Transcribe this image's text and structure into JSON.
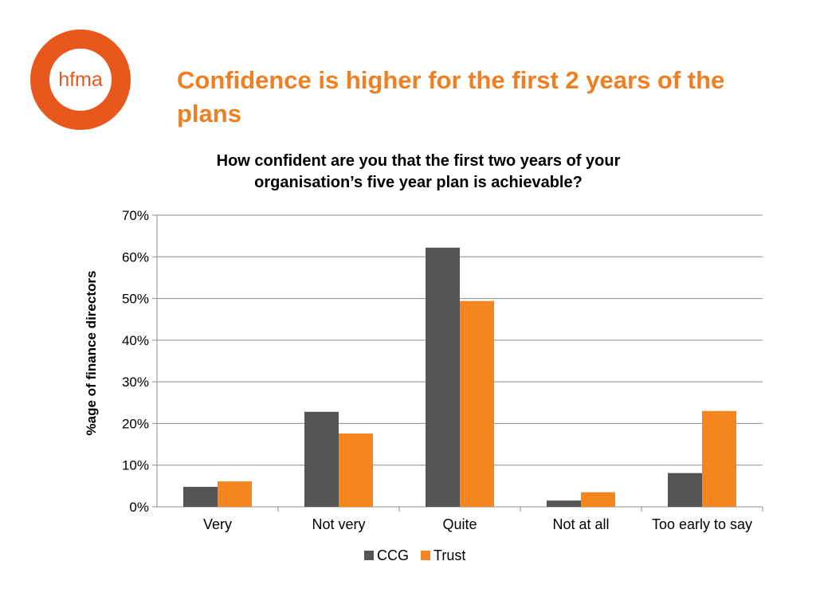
{
  "logo": {
    "text": "hfma"
  },
  "slide_title": "Confidence is higher for the first 2 years of the plans",
  "colors": {
    "ccg": "#555555",
    "trust": "#f5861f",
    "title": "#f07f22",
    "logo": "#e8581c"
  },
  "chart_data": {
    "type": "bar",
    "title": "How confident are you that the first two years of your organisation’s five year plan is achievable?",
    "title_lines": [
      "How confident are you that the first two years of your",
      "organisation’s five year plan is achievable?"
    ],
    "xlabel": "",
    "ylabel": "%age of finance directors",
    "categories": [
      "Very",
      "Not very",
      "Quite",
      "Not at all",
      "Too early to say"
    ],
    "series": [
      {
        "name": "CCG",
        "color": "#555555",
        "values": [
          0.048,
          0.228,
          0.622,
          0.015,
          0.081
        ]
      },
      {
        "name": "Trust",
        "color": "#f5861f",
        "values": [
          0.061,
          0.176,
          0.494,
          0.035,
          0.23
        ]
      }
    ],
    "ylim": [
      0,
      0.7
    ],
    "yticks": [
      "0%",
      "10%",
      "20%",
      "30%",
      "40%",
      "50%",
      "60%",
      "70%"
    ],
    "grid": true,
    "legend": "bottom"
  }
}
